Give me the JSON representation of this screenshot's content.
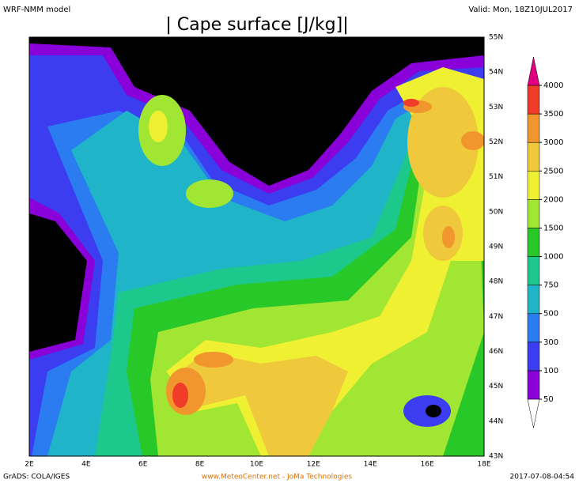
{
  "header": {
    "model": "WRF-NMM model",
    "title": "| Cape surface [J/kg]|",
    "valid": "Valid: Mon, 18Z10JUL2017"
  },
  "map": {
    "lon_labels": [
      "2E",
      "4E",
      "6E",
      "8E",
      "10E",
      "12E",
      "14E",
      "16E",
      "18E"
    ],
    "lat_labels": [
      "43N",
      "44N",
      "45N",
      "46N",
      "47N",
      "48N",
      "49N",
      "50N",
      "51N",
      "52N",
      "53N",
      "54N",
      "55N"
    ]
  },
  "colorbar": {
    "levels": [
      50,
      100,
      300,
      500,
      750,
      1000,
      1500,
      2000,
      2500,
      3000,
      3500,
      4000
    ],
    "colors": [
      "#ffffff",
      "#8a00d8",
      "#3c3cf0",
      "#2a7cf0",
      "#1fb4c8",
      "#1dc88c",
      "#28c828",
      "#a0e632",
      "#f0f032",
      "#f0c83c",
      "#f0962d",
      "#f03c28",
      "#e0007f"
    ]
  },
  "footer": {
    "left": "GrADS: COLA/IGES",
    "center": "www.MeteoCenter.net  -  JoMa Technologies",
    "right": "2017-07-08-04:54"
  }
}
